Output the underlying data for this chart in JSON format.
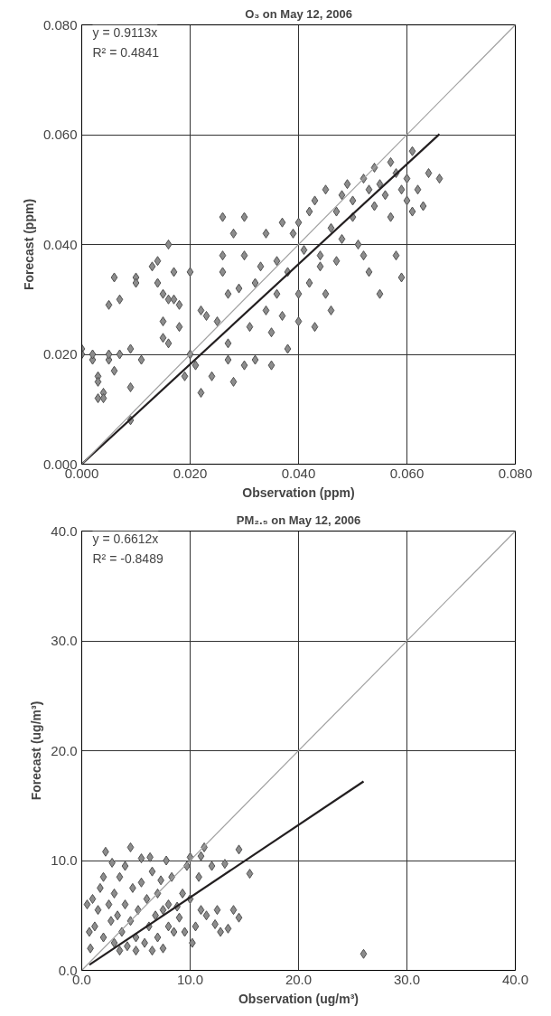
{
  "chart_data": [
    {
      "type": "scatter",
      "title": "O₃ on May 12, 2006",
      "xlabel": "Observation (ppm)",
      "ylabel": "Forecast (ppm)",
      "grid": true,
      "annotations": [
        "y = 0.9113x",
        "R² = 0.4841"
      ],
      "xlim": [
        0,
        0.08
      ],
      "ylim": [
        0,
        0.08
      ],
      "xticks": [
        {
          "value": 0,
          "label": "0.000"
        },
        {
          "value": 0.02,
          "label": "0.020"
        },
        {
          "value": 0.04,
          "label": "0.040"
        },
        {
          "value": 0.06,
          "label": "0.060"
        },
        {
          "value": 0.08,
          "label": "0.080"
        }
      ],
      "yticks": [
        {
          "value": 0,
          "label": "0.000"
        },
        {
          "value": 0.02,
          "label": "0.020"
        },
        {
          "value": 0.04,
          "label": "0.040"
        },
        {
          "value": 0.06,
          "label": "0.060"
        },
        {
          "value": 0.08,
          "label": "0.080"
        }
      ],
      "series": [
        {
          "marker": "diamond",
          "color": "#8c8c8c",
          "x": [
            0.0,
            0.0,
            0.002,
            0.002,
            0.003,
            0.003,
            0.003,
            0.004,
            0.004,
            0.005,
            0.005,
            0.005,
            0.006,
            0.006,
            0.007,
            0.007,
            0.009,
            0.009,
            0.009,
            0.01,
            0.01,
            0.011,
            0.013,
            0.014,
            0.014,
            0.015,
            0.015,
            0.015,
            0.016,
            0.016,
            0.016,
            0.017,
            0.017,
            0.018,
            0.018,
            0.019,
            0.02,
            0.02,
            0.021,
            0.022,
            0.022,
            0.023,
            0.024,
            0.025,
            0.026,
            0.026,
            0.026,
            0.027,
            0.027,
            0.027,
            0.028,
            0.028,
            0.029,
            0.03,
            0.03,
            0.03,
            0.031,
            0.032,
            0.032,
            0.033,
            0.034,
            0.034,
            0.035,
            0.035,
            0.036,
            0.036,
            0.037,
            0.037,
            0.038,
            0.038,
            0.039,
            0.04,
            0.04,
            0.04,
            0.041,
            0.042,
            0.042,
            0.043,
            0.043,
            0.044,
            0.044,
            0.045,
            0.045,
            0.046,
            0.046,
            0.047,
            0.047,
            0.048,
            0.048,
            0.049,
            0.05,
            0.05,
            0.051,
            0.052,
            0.052,
            0.053,
            0.053,
            0.054,
            0.054,
            0.055,
            0.055,
            0.056,
            0.057,
            0.057,
            0.058,
            0.058,
            0.059,
            0.059,
            0.06,
            0.06,
            0.061,
            0.061,
            0.062,
            0.063,
            0.064,
            0.066
          ],
          "values": [
            0.021,
            0.02,
            0.019,
            0.02,
            0.016,
            0.015,
            0.012,
            0.013,
            0.012,
            0.019,
            0.02,
            0.029,
            0.034,
            0.017,
            0.03,
            0.02,
            0.021,
            0.014,
            0.008,
            0.034,
            0.033,
            0.019,
            0.036,
            0.033,
            0.037,
            0.031,
            0.023,
            0.026,
            0.04,
            0.03,
            0.022,
            0.03,
            0.035,
            0.029,
            0.025,
            0.016,
            0.035,
            0.02,
            0.018,
            0.028,
            0.013,
            0.027,
            0.016,
            0.026,
            0.045,
            0.038,
            0.035,
            0.031,
            0.022,
            0.019,
            0.015,
            0.042,
            0.032,
            0.038,
            0.045,
            0.018,
            0.025,
            0.033,
            0.019,
            0.036,
            0.042,
            0.028,
            0.024,
            0.018,
            0.031,
            0.037,
            0.044,
            0.027,
            0.021,
            0.035,
            0.042,
            0.031,
            0.044,
            0.026,
            0.039,
            0.046,
            0.033,
            0.025,
            0.048,
            0.038,
            0.036,
            0.05,
            0.031,
            0.043,
            0.028,
            0.046,
            0.037,
            0.049,
            0.041,
            0.051,
            0.045,
            0.048,
            0.04,
            0.052,
            0.038,
            0.05,
            0.035,
            0.054,
            0.047,
            0.031,
            0.051,
            0.049,
            0.055,
            0.045,
            0.053,
            0.038,
            0.05,
            0.034,
            0.052,
            0.048,
            0.057,
            0.046,
            0.05,
            0.047,
            0.053,
            0.052
          ]
        },
        {
          "type": "line",
          "color": "#231f20",
          "x": [
            0,
            0.066
          ],
          "values": [
            0,
            0.0601
          ]
        },
        {
          "type": "line",
          "color": "#a0a0a0",
          "x": [
            0,
            0.08
          ],
          "values": [
            0,
            0.08
          ]
        }
      ]
    },
    {
      "type": "scatter",
      "title": "PM₂.₅ on May 12, 2006",
      "xlabel": "Observation (ug/m³)",
      "ylabel": "Forecast (ug/m³)",
      "grid": true,
      "annotations": [
        "y = 0.6612x",
        "R² = -0.8489"
      ],
      "xlim": [
        0,
        40
      ],
      "ylim": [
        0,
        40
      ],
      "xticks": [
        {
          "value": 0,
          "label": "0.0"
        },
        {
          "value": 10,
          "label": "10.0"
        },
        {
          "value": 20,
          "label": "20.0"
        },
        {
          "value": 30,
          "label": "30.0"
        },
        {
          "value": 40,
          "label": "40.0"
        }
      ],
      "yticks": [
        {
          "value": 0,
          "label": "0.0"
        },
        {
          "value": 10,
          "label": "10.0"
        },
        {
          "value": 20,
          "label": "20.0"
        },
        {
          "value": 30,
          "label": "30.0"
        },
        {
          "value": 40,
          "label": "40.0"
        }
      ],
      "series": [
        {
          "marker": "diamond",
          "color": "#8c8c8c",
          "x": [
            0.5,
            0.7,
            0.8,
            1.0,
            1.2,
            1.5,
            1.7,
            2.0,
            2.0,
            2.2,
            2.5,
            2.7,
            2.8,
            3.0,
            3.0,
            3.3,
            3.5,
            3.5,
            3.7,
            4.0,
            4.0,
            4.2,
            4.5,
            4.5,
            4.7,
            5.0,
            5.0,
            5.2,
            5.5,
            5.5,
            5.8,
            6.0,
            6.2,
            6.3,
            6.5,
            6.5,
            6.8,
            7.0,
            7.0,
            7.3,
            7.5,
            7.5,
            7.8,
            8.0,
            8.0,
            8.3,
            8.5,
            8.8,
            9.0,
            9.3,
            9.5,
            9.7,
            10.0,
            10.0,
            10.2,
            10.5,
            10.8,
            11.0,
            11.0,
            11.3,
            11.5,
            12.0,
            12.3,
            12.5,
            12.8,
            13.2,
            13.5,
            14.0,
            14.5,
            14.5,
            15.5,
            26.0
          ],
          "values": [
            6.0,
            3.5,
            2.0,
            6.5,
            4.0,
            5.5,
            7.5,
            3.0,
            8.5,
            10.8,
            6.0,
            4.5,
            9.8,
            2.5,
            7.0,
            5.0,
            1.8,
            8.5,
            3.5,
            9.5,
            6.0,
            2.2,
            11.2,
            4.5,
            7.5,
            1.8,
            3.0,
            5.5,
            10.2,
            8.0,
            2.5,
            6.5,
            4.0,
            10.3,
            1.8,
            9.0,
            5.0,
            3.0,
            7.0,
            8.2,
            2.0,
            5.5,
            10.0,
            4.0,
            6.0,
            8.5,
            3.5,
            5.8,
            4.8,
            7.0,
            3.5,
            9.5,
            10.3,
            6.5,
            2.5,
            4.0,
            8.5,
            10.4,
            5.5,
            11.2,
            5.0,
            9.5,
            4.2,
            5.5,
            3.5,
            9.7,
            3.8,
            5.5,
            11.0,
            4.8,
            8.8,
            1.5
          ]
        },
        {
          "type": "line",
          "color": "#231f20",
          "x": [
            0.7,
            26
          ],
          "values": [
            0.5,
            17.2
          ]
        },
        {
          "type": "line",
          "color": "#a0a0a0",
          "x": [
            0,
            40
          ],
          "values": [
            0,
            40
          ]
        }
      ]
    }
  ]
}
